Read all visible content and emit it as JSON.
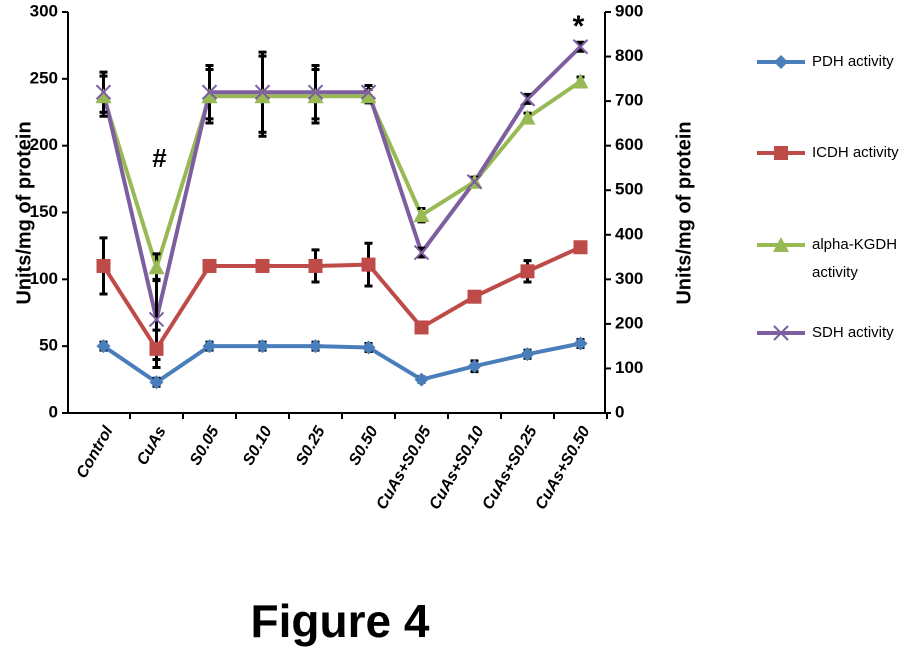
{
  "chart_data": {
    "type": "line",
    "title": "Figure 4",
    "y_label": "Units/mg of protein",
    "y2_label": "Units/mg of protein",
    "categories": [
      "Control",
      "CuAs",
      "S0.05",
      "S0.10",
      "S0.25",
      "S0.50",
      "CuAs+S0.05",
      "CuAs+S0.10",
      "CuAs+S0.25",
      "CuAs+S0.50"
    ],
    "ylim": [
      0,
      300
    ],
    "yticks": [
      0,
      50,
      100,
      150,
      200,
      250,
      300
    ],
    "y2lim": [
      0,
      900
    ],
    "y2ticks": [
      0,
      100,
      200,
      300,
      400,
      500,
      600,
      700,
      800,
      900
    ],
    "grid": false,
    "legend": "right",
    "annotations": [
      "#",
      "*"
    ],
    "series": [
      {
        "name": "PDH activity",
        "color": "#4a7ebb",
        "marker": "diamond",
        "axis": "y",
        "values": [
          50,
          23,
          50,
          50,
          50,
          49,
          25,
          35,
          44,
          52
        ],
        "errors": [
          3,
          3,
          3,
          3,
          3,
          3,
          2,
          4,
          3,
          3
        ]
      },
      {
        "name": "ICDH activity",
        "color": "#be4b48",
        "marker": "square",
        "axis": "y",
        "values": [
          110,
          48,
          110,
          110,
          110,
          111,
          64,
          87,
          106,
          124
        ],
        "errors": [
          21,
          14,
          3,
          3,
          12,
          16,
          3,
          3,
          8,
          3
        ]
      },
      {
        "name": "alpha-KGDH activity",
        "color": "#98b954",
        "marker": "triangle",
        "axis": "y2",
        "values": [
          711,
          327,
          711,
          711,
          711,
          711,
          444,
          519,
          663,
          744
        ],
        "errors": [
          45,
          30,
          60,
          90,
          60,
          15,
          15,
          10,
          10,
          10
        ]
      },
      {
        "name": "SDH activity",
        "color": "#7d5fa0",
        "marker": "x",
        "axis": "y2",
        "values": [
          720,
          210,
          720,
          720,
          720,
          720,
          360,
          519,
          705,
          822
        ],
        "errors": [
          45,
          90,
          60,
          90,
          60,
          15,
          10,
          10,
          10,
          10
        ]
      }
    ]
  }
}
